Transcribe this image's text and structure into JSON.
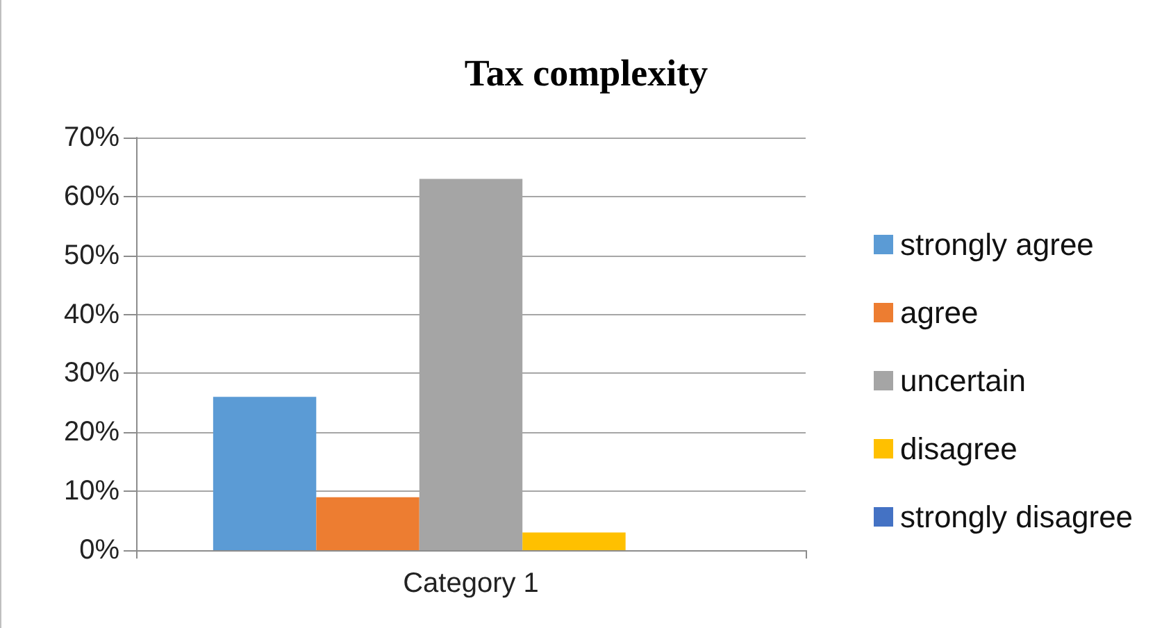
{
  "chart_data": {
    "type": "bar",
    "title": "Tax complexity",
    "categories": [
      "Category 1"
    ],
    "series": [
      {
        "name": "strongly agree",
        "color": "#5b9bd5",
        "values": [
          26
        ]
      },
      {
        "name": "agree",
        "color": "#ed7d31",
        "values": [
          9
        ]
      },
      {
        "name": "uncertain",
        "color": "#a5a5a5",
        "values": [
          63
        ]
      },
      {
        "name": "disagree",
        "color": "#ffc000",
        "values": [
          3
        ]
      },
      {
        "name": "strongly disagree",
        "color": "#4472c4",
        "values": [
          0
        ]
      }
    ],
    "ylim": [
      0,
      70
    ],
    "yticks": [
      {
        "value": 0,
        "label": "0%"
      },
      {
        "value": 10,
        "label": "10%"
      },
      {
        "value": 20,
        "label": "20%"
      },
      {
        "value": 30,
        "label": "30%"
      },
      {
        "value": 40,
        "label": "40%"
      },
      {
        "value": 50,
        "label": "50%"
      },
      {
        "value": 60,
        "label": "60%"
      },
      {
        "value": 70,
        "label": "70%"
      }
    ],
    "grid": "y",
    "legend": "right"
  }
}
